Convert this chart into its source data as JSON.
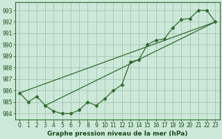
{
  "title": "Graphe pression niveau de la mer (hPa)",
  "x_values": [
    0,
    1,
    2,
    3,
    4,
    5,
    6,
    7,
    8,
    9,
    10,
    11,
    12,
    13,
    14,
    15,
    16,
    17,
    18,
    19,
    20,
    21,
    22,
    23
  ],
  "pressure": [
    985.8,
    985.0,
    985.5,
    984.7,
    984.2,
    984.0,
    984.0,
    984.3,
    985.0,
    984.7,
    985.3,
    986.0,
    986.5,
    988.5,
    988.7,
    990.0,
    990.4,
    990.5,
    991.5,
    992.2,
    992.3,
    993.0,
    993.0,
    992.0
  ],
  "ylim": [
    983.5,
    993.7
  ],
  "yticks": [
    984,
    985,
    986,
    987,
    988,
    989,
    990,
    991,
    992,
    993
  ],
  "xticks": [
    0,
    1,
    2,
    3,
    4,
    5,
    6,
    7,
    8,
    9,
    10,
    11,
    12,
    13,
    14,
    15,
    16,
    17,
    18,
    19,
    20,
    21,
    22,
    23
  ],
  "line_color": "#2d6a2d",
  "marker_color": "#2d6a2d",
  "bg_color": "#cce8d8",
  "grid_color": "#9dbdad",
  "text_color": "#1a4a1a",
  "trend1_x": [
    0,
    23
  ],
  "trend1_y": [
    985.8,
    992.0
  ],
  "trend2_x": [
    3,
    23
  ],
  "trend2_y": [
    984.7,
    992.0
  ]
}
